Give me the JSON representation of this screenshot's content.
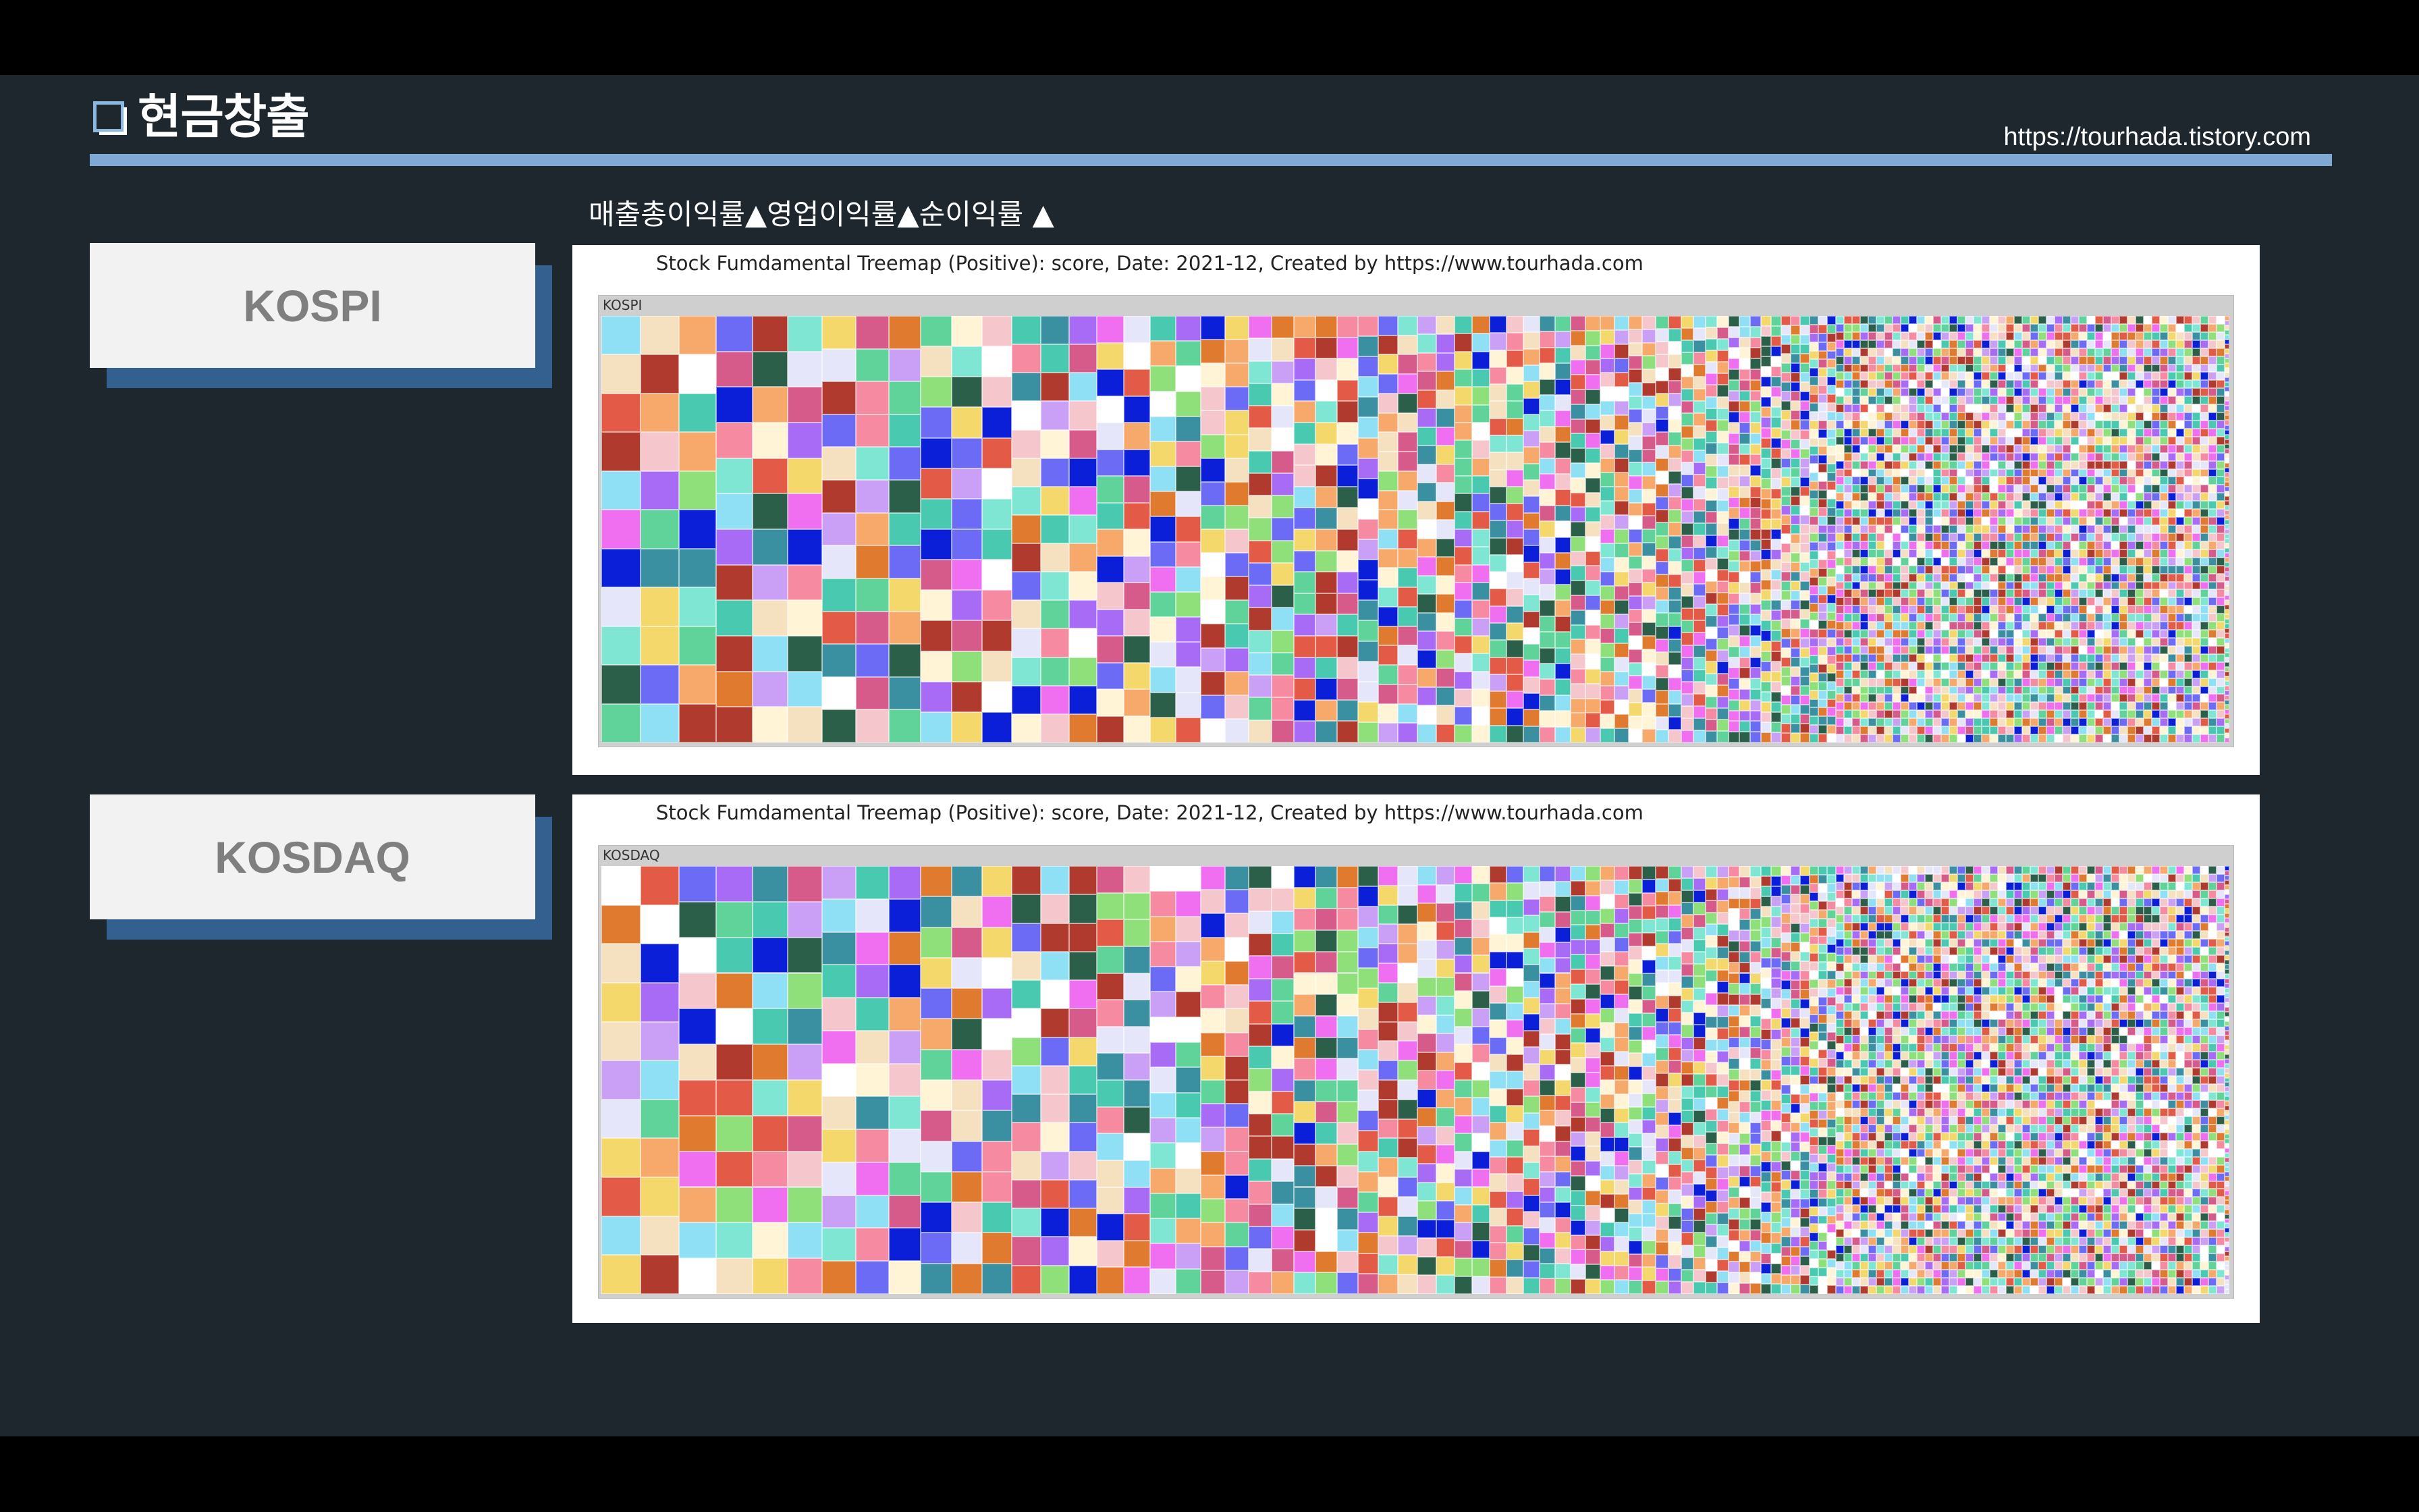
{
  "slide": {
    "title": "현금창출",
    "url": "https://tourhada.tistory.com",
    "subtitle": "매출총이익률▲영업이익률▲순이익률 ▲"
  },
  "kospi": {
    "label": "KOSPI",
    "caption": "Stock Fumdamental Treemap (Positive): score, Date: 2021-12, Created by https://www.tourhada.com",
    "treemap_label": "KOSPI"
  },
  "kosdaq": {
    "label": "KOSDAQ",
    "caption": "Stock Fumdamental Treemap (Positive): score, Date: 2021-12, Created by https://www.tourhada.com",
    "treemap_label": "KOSDAQ"
  },
  "palette": [
    "#6b6bf5",
    "#e35b47",
    "#5fd39a",
    "#f06ef0",
    "#f7a86b",
    "#2b5f4a",
    "#a86bf5",
    "#f5d86b",
    "#0b1fd9",
    "#b03a2e",
    "#48c9b0",
    "#f5c6cb",
    "#e6e6fa",
    "#8fe07a",
    "#7fe6d4",
    "#f58aa0",
    "#fff5d6",
    "#3a8fa0",
    "#e07a2e",
    "#c9a0f5",
    "#ffffff",
    "#90e0f5",
    "#f5e0c0",
    "#d65a8a"
  ]
}
